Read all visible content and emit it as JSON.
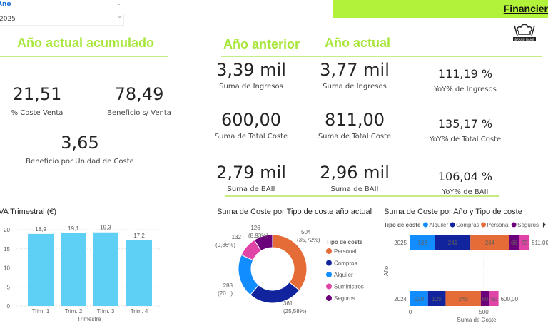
{
  "slicer": {
    "label": "Año",
    "value": "2025"
  },
  "banner": {
    "title": "Financier"
  },
  "logo": {
    "text": "BRAND NAME"
  },
  "left": {
    "title": "Año actual acumulado",
    "kpis": [
      {
        "value": "21,51",
        "label": "% Coste Venta"
      },
      {
        "value": "78,49",
        "label": "Beneficio s/ Venta"
      },
      {
        "value": "3,65",
        "label": "Beneficio por Unidad de Coste"
      }
    ]
  },
  "compare": {
    "prev_title": "Año anterior",
    "curr_title": "Año actual",
    "rows": [
      {
        "prev": "3,39 mil",
        "prev_label": "Suma de Ingresos",
        "curr": "3,77 mil",
        "curr_label": "Suma de Ingresos",
        "yoy": "111,19 %",
        "yoy_label": "YoY% de Ingresos"
      },
      {
        "prev": "600,00",
        "prev_label": "Suma de Total Coste",
        "curr": "811,00",
        "curr_label": "Suma de Total Coste",
        "yoy": "135,17 %",
        "yoy_label": "YoY% de Total Coste"
      },
      {
        "prev": "2,79 mil",
        "prev_label": "Suma de BAII",
        "curr": "2,96 mil",
        "curr_label": "Suma de BAII",
        "yoy": "106,04 %",
        "yoy_label": "YoY% de BAII"
      }
    ]
  },
  "colors": {
    "accent": "#a8e63c",
    "bar": "#5fd0f5",
    "Alquiler": "#118DFF",
    "Compras": "#12239E",
    "Personal": "#E66C37",
    "Suministros": "#E044A7",
    "Seguros": "#6B007B"
  },
  "chart_data": [
    {
      "type": "bar",
      "title": "VA Trimestral (€)",
      "categories": [
        "Trim. 1",
        "Trim. 2",
        "Trim. 3",
        "Trim. 4"
      ],
      "values": [
        18.9,
        19.1,
        19.3,
        17.2
      ],
      "data_labels": [
        "18,9",
        "19,1",
        "19,3",
        "17,2"
      ],
      "xlabel": "Trimestre",
      "ylim": [
        0,
        20
      ],
      "yticks": [
        0,
        5,
        10,
        15,
        20
      ],
      "grid": true
    },
    {
      "type": "pie",
      "title": "Suma de Coste por Tipo de coste año actual",
      "legend_title": "Tipo de coste",
      "legend": "right",
      "slices": [
        {
          "name": "Personal",
          "value": 504,
          "label": "504",
          "pct": "(35,72%)"
        },
        {
          "name": "Compras",
          "value": 361,
          "label": "361",
          "pct": "(25,58%)"
        },
        {
          "name": "Alquiler",
          "value": 288,
          "label": "288",
          "pct": "(20...)"
        },
        {
          "name": "Suministros",
          "value": 132,
          "label": "132",
          "pct": "(9,36%)"
        },
        {
          "name": "Seguros",
          "value": 126,
          "label": "126",
          "pct": "(8,93%)"
        }
      ]
    },
    {
      "type": "bar",
      "orientation": "horizontal",
      "stacked": true,
      "title": "Suma de Coste por Año y Tipo de coste",
      "legend_title": "Tipo de coste",
      "legend": "top",
      "xlabel": "Suma de Coste",
      "ylabel": "Año",
      "xticks": [
        "0",
        "500"
      ],
      "categories": [
        "2025",
        "2024"
      ],
      "totals": [
        "811,00",
        "600,00"
      ],
      "series": [
        {
          "name": "Alquiler",
          "values": [
            168,
            120
          ]
        },
        {
          "name": "Compras",
          "values": [
            241,
            120
          ]
        },
        {
          "name": "Personal",
          "values": [
            264,
            240
          ]
        },
        {
          "name": "Seguros",
          "values": [
            66,
            60
          ]
        },
        {
          "name": "Suministros",
          "values": [
            72,
            60
          ]
        }
      ],
      "legend_entries": [
        "Alquiler",
        "Compras",
        "Personal",
        "Seguros"
      ]
    }
  ]
}
